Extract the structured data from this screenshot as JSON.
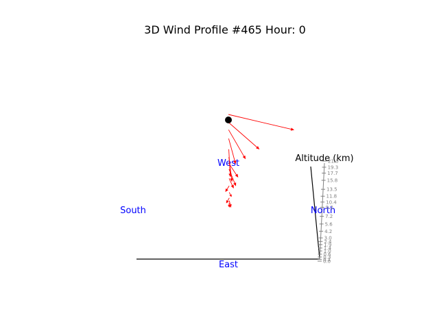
{
  "chart_data": {
    "type": "vector",
    "title": "3D Wind Profile #465 Hour: 0",
    "compass": {
      "west": "West",
      "south": "South",
      "north": "North",
      "east": "East",
      "color": "#0000ff"
    },
    "altitude_axis": {
      "label": "Altitude (km)",
      "ticks": [
        "0.0",
        "0.1",
        "0.3",
        "0.6",
        "1.0",
        "1.4",
        "1.9",
        "2.4",
        "3.0",
        "4.2",
        "5.6",
        "7.2",
        "9.2",
        "10.4",
        "11.8",
        "13.5",
        "15.8",
        "17.7",
        "19.3",
        "21.0"
      ],
      "tick_color": "#808080"
    },
    "arrow_color": "#ff0000",
    "marker_color": "#000000",
    "vectors": [
      {
        "altitude_km": 21.0,
        "u": 8.5,
        "v": 2.0
      },
      {
        "altitude_km": 19.3,
        "u": 4.0,
        "v": 3.5
      },
      {
        "altitude_km": 17.7,
        "u": 2.2,
        "v": 3.8
      },
      {
        "altitude_km": 15.8,
        "u": 0.9,
        "v": 3.3
      },
      {
        "altitude_km": 13.5,
        "u": 0.2,
        "v": 3.6
      },
      {
        "altitude_km": 11.8,
        "u": 0.4,
        "v": 3.2
      },
      {
        "altitude_km": 10.4,
        "u": 1.2,
        "v": 1.8
      },
      {
        "altitude_km": 9.2,
        "u": 0.9,
        "v": 2.2
      },
      {
        "altitude_km": 7.2,
        "u": 0.6,
        "v": 1.3
      },
      {
        "altitude_km": 5.6,
        "u": -0.5,
        "v": 0.8
      },
      {
        "altitude_km": 4.2,
        "u": 0.3,
        "v": 0.6
      },
      {
        "altitude_km": 3.0,
        "u": -0.4,
        "v": 0.7
      },
      {
        "altitude_km": 2.4,
        "u": 0.2,
        "v": 0.9
      },
      {
        "altitude_km": 1.9,
        "u": -0.1,
        "v": 0.5
      },
      {
        "altitude_km": 1.4,
        "u": 0.0,
        "v": 0.3
      }
    ]
  }
}
